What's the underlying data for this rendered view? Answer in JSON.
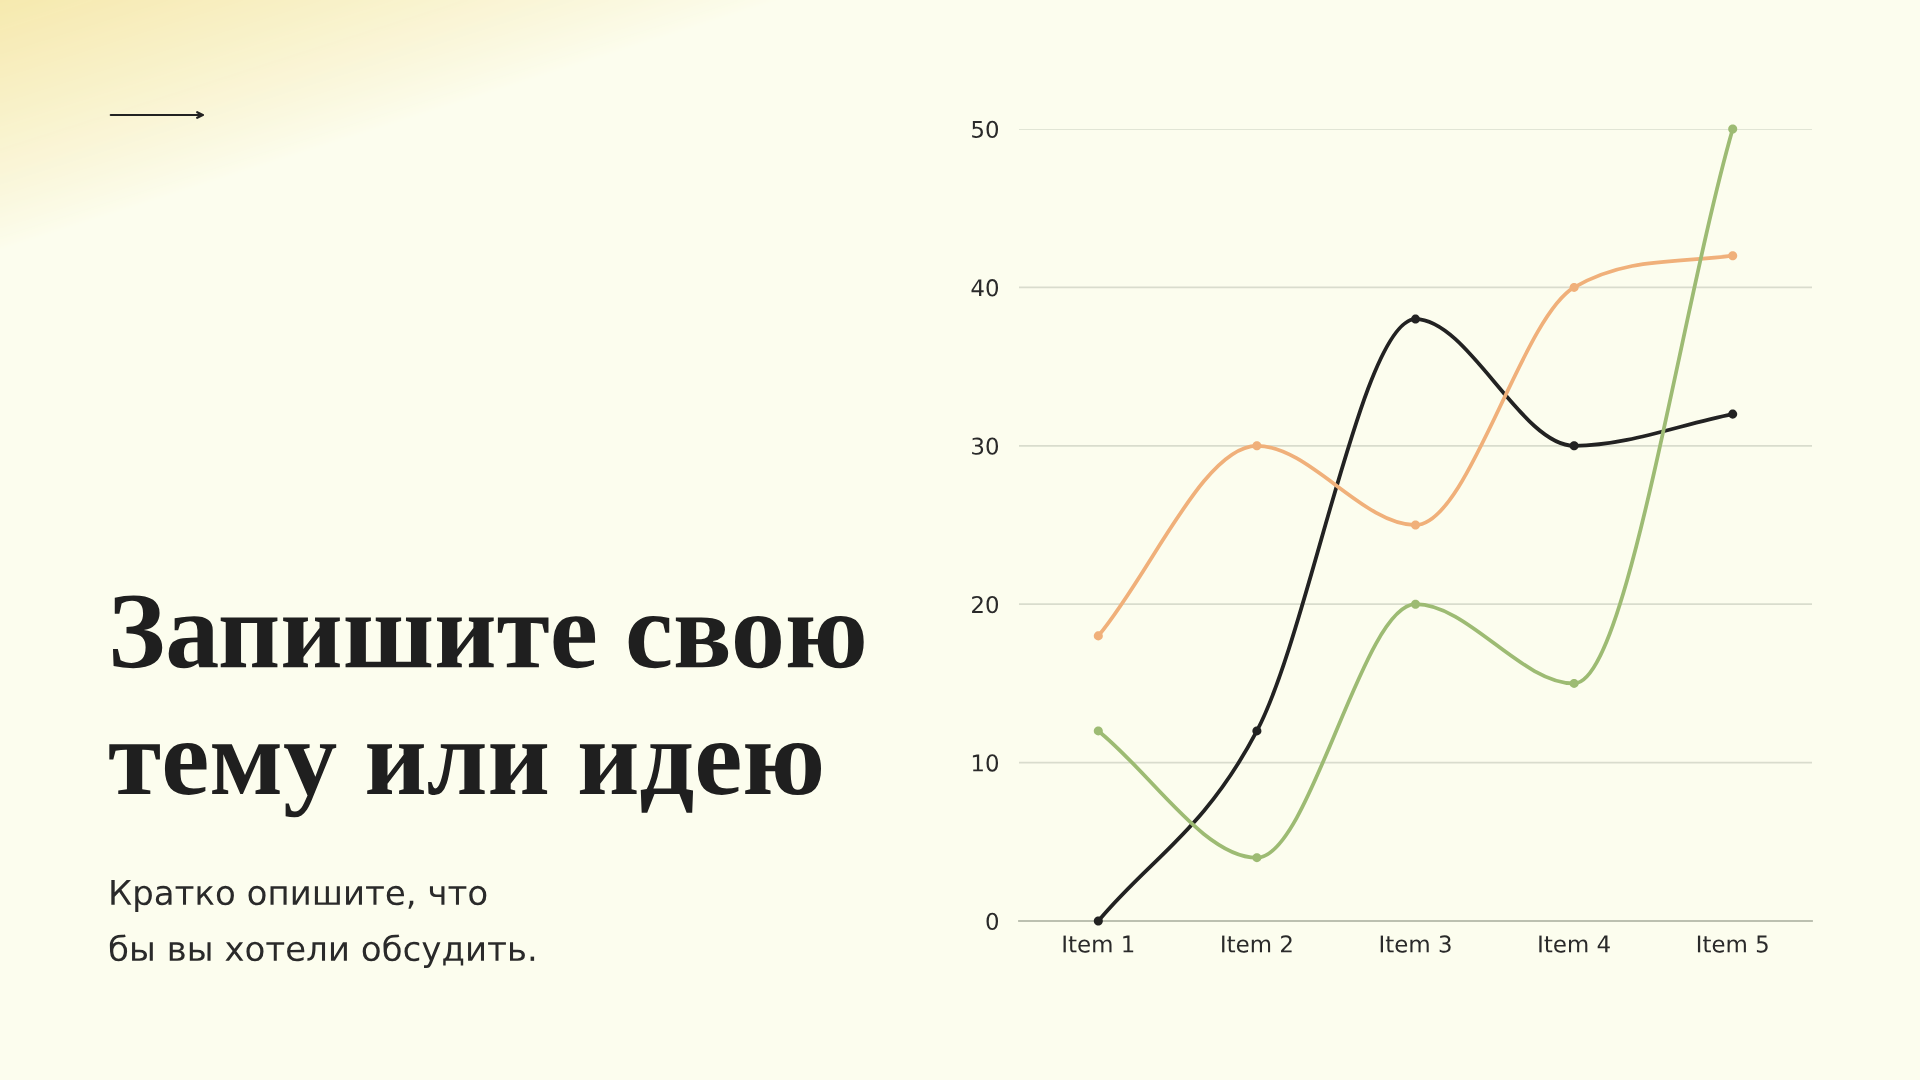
{
  "chart_data": {
    "type": "line",
    "title": "Запишите свою\nтему или идею",
    "subtitle": "Кратко опишите, что\nбы вы хотели обсудить.",
    "categories": [
      "Item 1",
      "Item 2",
      "Item 3",
      "Item 4",
      "Item 5"
    ],
    "series": [
      {
        "color": "#222222",
        "values": [
          0,
          12,
          38,
          30,
          32
        ]
      },
      {
        "color": "#f0b07a",
        "values": [
          18,
          30,
          25,
          40,
          42
        ]
      },
      {
        "color": "#9dbb73",
        "values": [
          12,
          4,
          20,
          15,
          50
        ]
      }
    ],
    "ylim": [
      0,
      50
    ],
    "yticks": [
      0,
      10,
      20,
      30,
      40,
      50
    ],
    "grid": "y",
    "marker": "circle",
    "line_style": "solid"
  }
}
